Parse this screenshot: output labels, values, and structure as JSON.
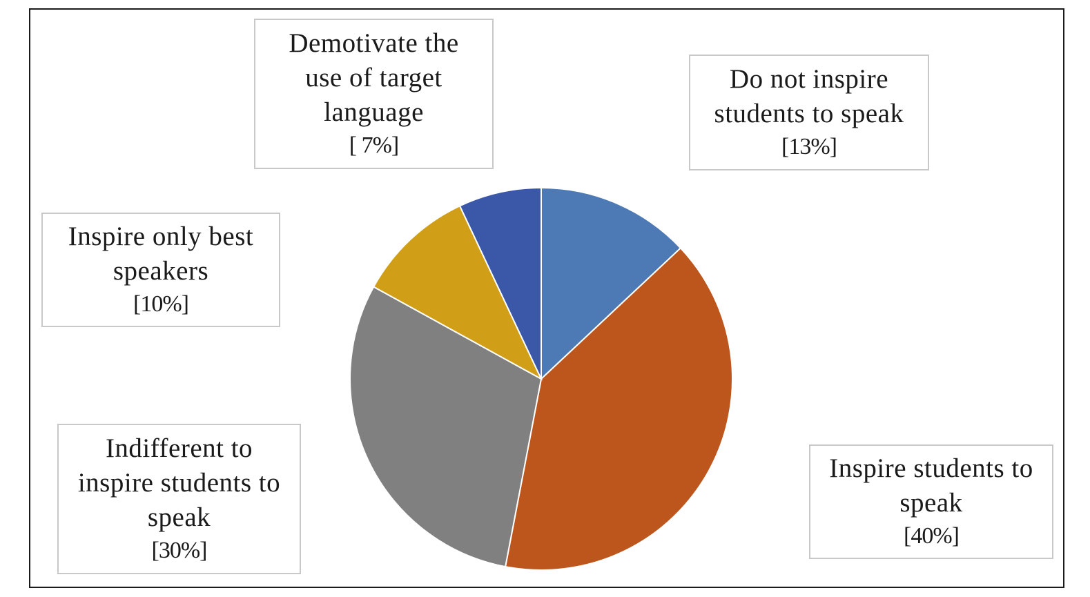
{
  "chart_data": {
    "type": "pie",
    "title": "",
    "start_angle_deg": 0,
    "direction": "clockwise",
    "slices": [
      {
        "label": "Do not inspire students to speak",
        "value": 13,
        "value_label": "[13%]",
        "color": "#4d7ab5",
        "lines": [
          "Do not inspire",
          "students to speak"
        ]
      },
      {
        "label": "Inspire students to speak",
        "value": 40,
        "value_label": "[40%]",
        "color": "#bd561d",
        "lines": [
          "Inspire students to",
          "speak"
        ]
      },
      {
        "label": "Indifferent to inspire students to speak",
        "value": 30,
        "value_label": "[30%]",
        "color": "#808080",
        "lines": [
          "Indifferent to",
          "inspire students to",
          "speak"
        ]
      },
      {
        "label": "Inspire only best speakers",
        "value": 10,
        "value_label": "[10%]",
        "color": "#d19e17",
        "lines": [
          "Inspire only best",
          "speakers"
        ]
      },
      {
        "label": "Demotivate the use of target language",
        "value": 7,
        "value_label": "[ 7%]",
        "color": "#3b57a8",
        "lines": [
          "Demotivate the",
          "use of target",
          "language"
        ]
      }
    ]
  }
}
